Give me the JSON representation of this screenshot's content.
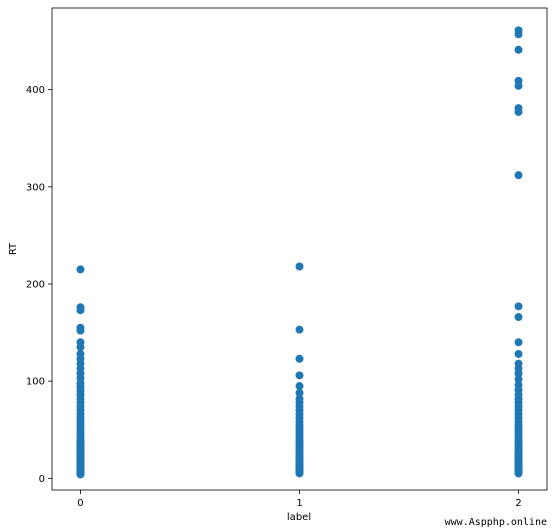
{
  "chart_data": {
    "type": "scatter",
    "xlabel": "label",
    "ylabel": "RT",
    "xlim": [
      -0.13,
      2.13
    ],
    "ylim": [
      -12,
      484
    ],
    "x_ticks": [
      0,
      1,
      2
    ],
    "y_ticks": [
      0,
      100,
      200,
      300,
      400
    ],
    "grid": false,
    "color": "#1f77b4",
    "series": [
      {
        "x": [
          0,
          0,
          0,
          0,
          0,
          0,
          0,
          0,
          0,
          0,
          0,
          0,
          0,
          0,
          0,
          0,
          0,
          0,
          0,
          0,
          0,
          0,
          0,
          0,
          0,
          0,
          0,
          0,
          0,
          0,
          0,
          0,
          0,
          0,
          0,
          0,
          0,
          0,
          0,
          0,
          0,
          0,
          0,
          0,
          0,
          0,
          0,
          0,
          0,
          0,
          0,
          0,
          0,
          0,
          0,
          0,
          0,
          0,
          0,
          0,
          0,
          0,
          0,
          0,
          1,
          1,
          1,
          1,
          1,
          1,
          1,
          1,
          1,
          1,
          1,
          1,
          1,
          1,
          1,
          1,
          1,
          1,
          1,
          1,
          1,
          1,
          1,
          1,
          1,
          1,
          1,
          1,
          1,
          1,
          1,
          1,
          1,
          1,
          1,
          1,
          1,
          1,
          1,
          1,
          1,
          1,
          1,
          1,
          2,
          2,
          2,
          2,
          2,
          2,
          2,
          2,
          2,
          2,
          2,
          2,
          2,
          2,
          2,
          2,
          2,
          2,
          2,
          2,
          2,
          2,
          2,
          2,
          2,
          2,
          2,
          2,
          2,
          2,
          2,
          2,
          2,
          2,
          2,
          2,
          2,
          2,
          2,
          2,
          2,
          2,
          2,
          2,
          2,
          2,
          2,
          2,
          2,
          2,
          2,
          2,
          2,
          2,
          2,
          2,
          2,
          2,
          2,
          2,
          2
        ],
        "y": [
          215,
          176,
          173,
          155,
          152,
          140,
          135,
          128,
          123,
          118,
          113,
          108,
          103,
          98,
          94,
          90,
          86,
          82,
          78,
          74,
          70,
          66,
          62,
          59,
          56,
          53,
          50,
          47,
          44,
          41,
          39,
          37,
          35,
          33,
          31,
          29,
          27,
          25,
          23,
          21,
          19,
          17,
          15,
          13,
          11,
          9,
          7,
          5,
          4,
          6,
          8,
          10,
          12,
          14,
          16,
          18,
          20,
          22,
          24,
          26,
          28,
          30,
          32,
          34,
          218,
          153,
          123,
          106,
          95,
          88,
          82,
          78,
          74,
          70,
          66,
          62,
          58,
          55,
          52,
          49,
          46,
          43,
          40,
          38,
          36,
          34,
          32,
          30,
          28,
          26,
          24,
          22,
          20,
          18,
          16,
          14,
          12,
          10,
          8,
          6,
          5,
          7,
          9,
          11,
          13,
          15,
          17,
          19,
          461,
          457,
          441,
          409,
          404,
          381,
          377,
          312,
          177,
          166,
          140,
          128,
          118,
          113,
          108,
          102,
          96,
          91,
          86,
          82,
          78,
          74,
          70,
          66,
          62,
          58,
          55,
          52,
          49,
          46,
          43,
          40,
          38,
          36,
          34,
          32,
          30,
          28,
          26,
          24,
          22,
          20,
          18,
          16,
          14,
          12,
          10,
          8,
          6,
          5,
          7,
          9,
          11,
          13,
          15,
          17,
          19,
          21,
          23,
          25,
          27
        ]
      }
    ]
  },
  "watermark": "www.Aspphp.online"
}
